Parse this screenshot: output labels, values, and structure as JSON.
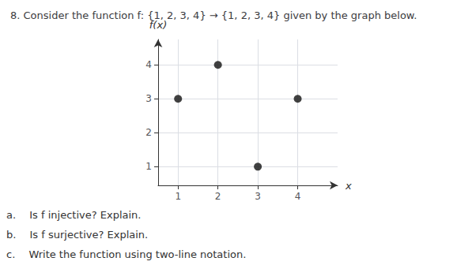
{
  "chart_data": {
    "type": "scatter",
    "title": "8. Consider the function f: {1, 2, 3, 4} → {1, 2, 3, 4} given by the graph below.",
    "x": [
      1,
      2,
      3,
      4
    ],
    "values": [
      3,
      4,
      1,
      3
    ],
    "color": "#111111",
    "xlabel": "x",
    "ylabel": "f(x)",
    "xlim": [
      0.5,
      5.0
    ],
    "ylim": [
      0.45,
      4.75
    ],
    "xticks": [
      1,
      2,
      3,
      4
    ],
    "yticks": [
      1,
      2,
      3,
      4
    ],
    "grid": true,
    "annotations": [
      "a.  Is f injective? Explain.",
      "b.  Is f surjective? Explain.",
      "c.  Write the function using two-line notation."
    ]
  }
}
